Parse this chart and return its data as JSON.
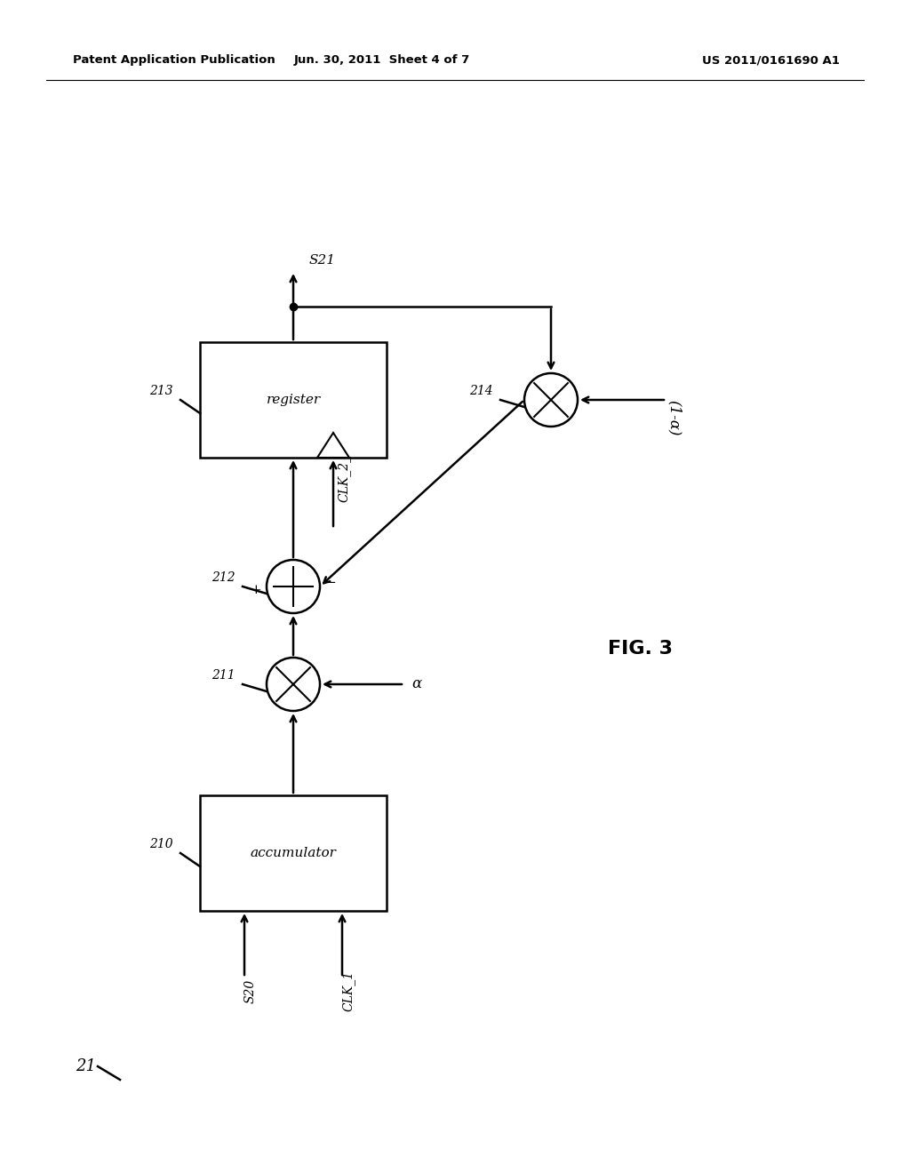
{
  "background_color": "#ffffff",
  "header_left": "Patent Application Publication",
  "header_center": "Jun. 30, 2011  Sheet 4 of 7",
  "header_right": "US 2011/0161690 A1",
  "fig_label": "FIG. 3",
  "module_label": "21",
  "accum_label": "accumulator",
  "reg_label": "register",
  "s20_label": "S20",
  "s21_label": "S21",
  "clk1_label": "CLK_1",
  "clk2_label": "CLK_2_",
  "alpha_label": "α",
  "one_minus_alpha_label": "(1-α)",
  "ref_210": "210",
  "ref_211": "211",
  "ref_212": "212",
  "ref_213": "213",
  "ref_214": "214",
  "ref_21": "21"
}
